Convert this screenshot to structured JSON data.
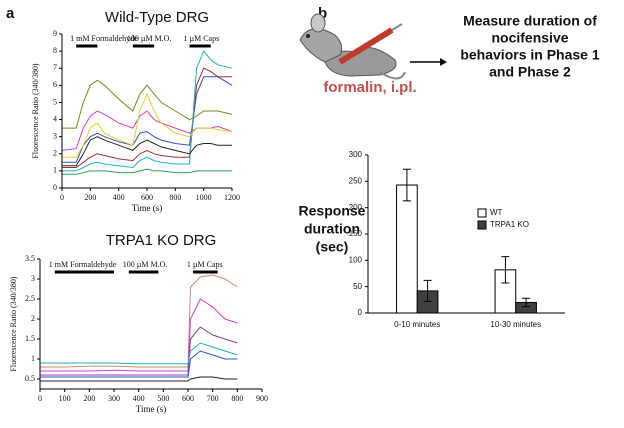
{
  "panel_labels": [
    "a",
    "b"
  ],
  "diagram": {
    "label": "formalin, i.pl.",
    "text": [
      "Measure duration of",
      "nocifensive",
      "behaviors in Phase 1",
      "and Phase 2"
    ]
  },
  "chart_data": [
    {
      "type": "line",
      "title": "Wild-Type DRG",
      "x_label": "Time (s)",
      "y_label": "Fluorescence Ratio (340/380)",
      "xlim": [
        0,
        1200
      ],
      "ylim": [
        0,
        9
      ],
      "xticks": [
        0,
        200,
        400,
        600,
        800,
        1000,
        1200
      ],
      "yticks": [
        0,
        1,
        2,
        3,
        4,
        5,
        6,
        7,
        8,
        9
      ],
      "annotations": [
        {
          "text": "1 mM Formaldehyde",
          "x": [
            100,
            250
          ]
        },
        {
          "text": "100 µM M.O.",
          "x": [
            500,
            650
          ]
        },
        {
          "text": "1 µM Caps",
          "x": [
            900,
            1050
          ]
        }
      ],
      "x": [
        0,
        100,
        150,
        200,
        250,
        300,
        400,
        500,
        550,
        600,
        650,
        700,
        800,
        900,
        950,
        1000,
        1050,
        1100,
        1200
      ],
      "series": [
        {
          "color": "#6b8e23",
          "values": [
            3.5,
            3.5,
            5,
            6,
            6.3,
            6,
            5.2,
            4.5,
            5.5,
            6,
            5.5,
            5,
            4.5,
            4,
            4.2,
            4.5,
            4.5,
            4.5,
            4.3
          ]
        },
        {
          "color": "#d040d0",
          "values": [
            2.2,
            2.3,
            3.5,
            4.2,
            4.5,
            4.3,
            3.8,
            3.5,
            4.2,
            4.5,
            4,
            3.8,
            3.5,
            3.2,
            3.5,
            3.5,
            3.5,
            3.6,
            3.3
          ]
        },
        {
          "color": "#3050c0",
          "values": [
            1.5,
            1.5,
            2.5,
            3,
            3.2,
            3,
            2.7,
            2.5,
            3.2,
            3.3,
            3,
            2.8,
            2.6,
            2.5,
            5.5,
            6.5,
            6.5,
            6.5,
            6
          ]
        },
        {
          "color": "#a03030",
          "values": [
            1.2,
            1.2,
            1.5,
            1.8,
            2,
            1.9,
            1.7,
            1.6,
            2,
            2.2,
            2,
            1.9,
            1.8,
            1.8,
            6,
            7,
            6.8,
            6.5,
            6.5
          ]
        },
        {
          "color": "#20b0c0",
          "values": [
            1,
            1,
            1.2,
            1.4,
            1.5,
            1.4,
            1.3,
            1.2,
            1.6,
            1.8,
            1.6,
            1.5,
            1.4,
            1.4,
            7,
            8,
            7.5,
            7.2,
            7
          ]
        },
        {
          "color": "#e0d030",
          "values": [
            1.8,
            1.8,
            2.5,
            3.5,
            3.8,
            3.2,
            2.8,
            2.5,
            4.5,
            5.5,
            4.5,
            3.8,
            3.2,
            3,
            3.5,
            3.5,
            3.5,
            3.4,
            3.3
          ]
        },
        {
          "color": "#222222",
          "values": [
            1.3,
            1.3,
            2,
            2.8,
            3,
            2.8,
            2.5,
            2.2,
            2.6,
            2.8,
            2.6,
            2.4,
            2.2,
            2,
            2.5,
            2.6,
            2.6,
            2.5,
            2.5
          ]
        },
        {
          "color": "#30a050",
          "values": [
            0.8,
            0.8,
            0.9,
            1,
            1,
            1,
            0.9,
            0.9,
            1,
            1.1,
            1,
            1,
            0.9,
            0.9,
            1,
            1,
            1,
            1,
            1
          ]
        }
      ]
    },
    {
      "type": "line",
      "title": "TRPA1 KO DRG",
      "x_label": "Time (s)",
      "y_label": "Fluorescence Ratio (340/380)",
      "xlim": [
        0,
        900
      ],
      "ylim": [
        0.25,
        3.5
      ],
      "xticks": [
        0,
        100,
        200,
        300,
        400,
        500,
        600,
        700,
        800,
        900
      ],
      "yticks": [
        0.5,
        1,
        1.5,
        2,
        2.5,
        3,
        3.5
      ],
      "annotations": [
        {
          "text": "1 mM Formaldehyde",
          "x": [
            60,
            300
          ]
        },
        {
          "text": "100 µM M.O.",
          "x": [
            360,
            480
          ]
        },
        {
          "text": "1 µM Caps",
          "x": [
            620,
            720
          ]
        }
      ],
      "x": [
        0,
        100,
        200,
        300,
        400,
        500,
        600,
        610,
        650,
        700,
        750,
        800
      ],
      "series": [
        {
          "color": "#c09070",
          "values": [
            0.8,
            0.8,
            0.82,
            0.82,
            0.8,
            0.8,
            0.8,
            2.8,
            3.05,
            3.1,
            3,
            2.8
          ]
        },
        {
          "color": "#d040d0",
          "values": [
            0.7,
            0.7,
            0.7,
            0.72,
            0.7,
            0.7,
            0.7,
            2,
            2.5,
            2.3,
            2,
            1.9
          ]
        },
        {
          "color": "#8040a0",
          "values": [
            0.6,
            0.6,
            0.6,
            0.6,
            0.6,
            0.6,
            0.6,
            1.5,
            1.8,
            1.6,
            1.5,
            1.4
          ]
        },
        {
          "color": "#3050c0",
          "values": [
            0.55,
            0.55,
            0.55,
            0.55,
            0.55,
            0.55,
            0.55,
            1,
            1.2,
            1.1,
            1,
            1
          ]
        },
        {
          "color": "#222222",
          "values": [
            0.45,
            0.45,
            0.45,
            0.45,
            0.45,
            0.45,
            0.45,
            0.5,
            0.55,
            0.55,
            0.5,
            0.5
          ]
        },
        {
          "color": "#20b0c0",
          "values": [
            0.9,
            0.9,
            0.9,
            0.9,
            0.88,
            0.88,
            0.88,
            1.2,
            1.4,
            1.3,
            1.2,
            1.1
          ]
        }
      ]
    },
    {
      "type": "bar",
      "y_label": [
        "Response",
        "duration",
        "(sec)"
      ],
      "categories": [
        "0-10 minutes",
        "10-30 minutes"
      ],
      "ylim": [
        0,
        300
      ],
      "yticks": [
        0,
        50,
        100,
        150,
        200,
        250,
        300
      ],
      "series": [
        {
          "name": "WT",
          "color": "#ffffff",
          "values": [
            243,
            82
          ],
          "errors": [
            30,
            25
          ]
        },
        {
          "name": "TRPA1 KO",
          "color": "#404040",
          "values": [
            42,
            20
          ],
          "errors": [
            20,
            8
          ]
        }
      ]
    }
  ]
}
